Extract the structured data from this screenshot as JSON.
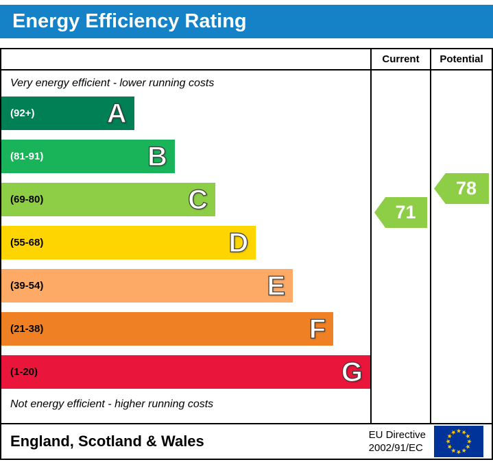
{
  "title_bar": {
    "title": "Energy Efficiency Rating",
    "bg": "#1581c6",
    "text_color": "#ffffff"
  },
  "columns": {
    "current": "Current",
    "potential": "Potential"
  },
  "notes": {
    "top": "Very energy efficient - lower running costs",
    "bottom": "Not energy efficient - higher running costs"
  },
  "chart_data": {
    "type": "bar",
    "title": "Energy Efficiency Rating",
    "bands": [
      {
        "letter": "A",
        "range": "(92+)",
        "min": 92,
        "max": 100,
        "color": "#008054",
        "width_pct": 36,
        "label_color": "#ffffff"
      },
      {
        "letter": "B",
        "range": "(81-91)",
        "min": 81,
        "max": 91,
        "color": "#19b459",
        "width_pct": 47,
        "label_color": "#ffffff"
      },
      {
        "letter": "C",
        "range": "(69-80)",
        "min": 69,
        "max": 80,
        "color": "#8dce46",
        "width_pct": 58,
        "label_color": "#000000"
      },
      {
        "letter": "D",
        "range": "(55-68)",
        "min": 55,
        "max": 68,
        "color": "#ffd500",
        "width_pct": 69,
        "label_color": "#000000"
      },
      {
        "letter": "E",
        "range": "(39-54)",
        "min": 39,
        "max": 54,
        "color": "#fcaa65",
        "width_pct": 79,
        "label_color": "#000000"
      },
      {
        "letter": "F",
        "range": "(21-38)",
        "min": 21,
        "max": 38,
        "color": "#ef8023",
        "width_pct": 90,
        "label_color": "#000000"
      },
      {
        "letter": "G",
        "range": "(1-20)",
        "min": 1,
        "max": 20,
        "color": "#e9153b",
        "width_pct": 100,
        "label_color": "#000000"
      }
    ],
    "current": {
      "value": 71,
      "band": "C",
      "color": "#8dce46"
    },
    "potential": {
      "value": 78,
      "band": "C",
      "color": "#8dce46"
    }
  },
  "footer": {
    "region": "England, Scotland & Wales",
    "directive": [
      "EU Directive",
      "2002/91/EC"
    ]
  },
  "flag": {
    "bg": "#003399",
    "stars": 12,
    "star_color": "#ffcc00",
    "star_glyph": "★"
  }
}
